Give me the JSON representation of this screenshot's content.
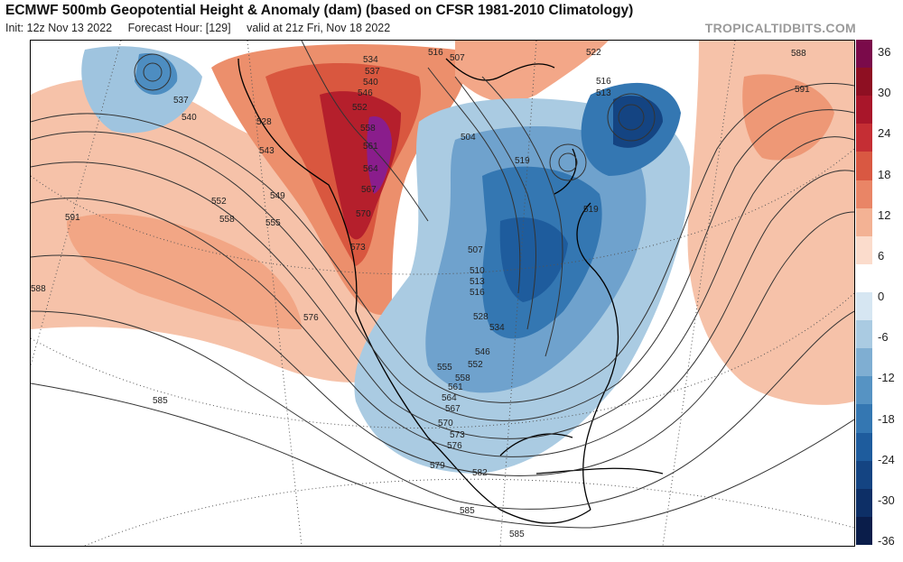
{
  "header": {
    "title": "ECMWF 500mb Geopotential Height & Anomaly (dam) (based on CFSR 1981-2010 Climatology)",
    "init": "Init: 12z Nov 13 2022",
    "forecast_hour": "Forecast Hour: [129]",
    "valid": "valid at 21z Fri, Nov 18 2022",
    "credit": "TROPICALTIDBITS.COM"
  },
  "colorbar": {
    "labels": [
      "36",
      "30",
      "24",
      "18",
      "12",
      "6",
      "0",
      "-6",
      "-12",
      "-18",
      "-24",
      "-30",
      "-36"
    ],
    "colors": [
      "#7a0a4a",
      "#8e0f22",
      "#a9162a",
      "#c52e34",
      "#d95842",
      "#e98566",
      "#f3b294",
      "#fbdccc",
      "#ffffff",
      "#d6e6f2",
      "#aacbe2",
      "#7faed2",
      "#5693c3",
      "#3477b2",
      "#1e5c9d",
      "#144482",
      "#0d2f66",
      "#0a1d4a"
    ]
  },
  "map": {
    "contour_labels": {
      "c537a": "537",
      "c540a": "540",
      "c534": "534",
      "c537b": "537",
      "c540b": "540",
      "c546": "546",
      "c552a": "552",
      "c528": "528",
      "c543": "543",
      "c552b": "552",
      "c549": "549",
      "c558a": "558",
      "c555a": "555",
      "c591a": "591",
      "c588a": "588",
      "c576a": "576",
      "c585a": "585",
      "c558b": "558",
      "c561a": "561",
      "c564a": "564",
      "c567a": "567",
      "c570a": "570",
      "c573a": "573",
      "c516a": "516",
      "c507a": "507",
      "c504": "504",
      "c519a": "519",
      "c516b": "516",
      "c513a": "513",
      "c522": "522",
      "c519b": "519",
      "c507b": "507",
      "c510": "510",
      "c513b": "513",
      "c516c": "516",
      "c528b": "528",
      "c534b": "534",
      "c546b": "546",
      "c552c": "552",
      "c555b": "555",
      "c558c": "558",
      "c561b": "561",
      "c564b": "564",
      "c567b": "567",
      "c570b": "570",
      "c573b": "573",
      "c576b": "576",
      "c579": "579",
      "c582": "582",
      "c585b": "585",
      "c585c": "585",
      "c588b": "588",
      "c591b": "591"
    }
  }
}
